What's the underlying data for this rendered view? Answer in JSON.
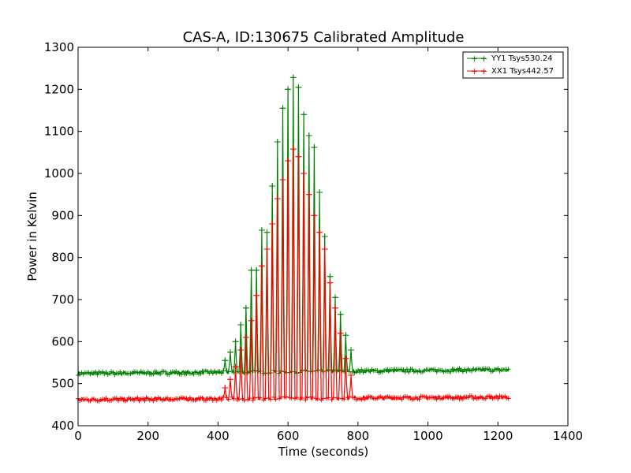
{
  "chart_data": {
    "type": "line",
    "title": "CAS-A, ID:130675 Calibrated Amplitude",
    "xlabel": "Time (seconds)",
    "ylabel": "Power in Kelvin",
    "xlim": [
      0,
      1400
    ],
    "ylim": [
      400,
      1300
    ],
    "xticks": [
      0,
      200,
      400,
      600,
      800,
      1000,
      1200,
      1400
    ],
    "yticks": [
      400,
      500,
      600,
      700,
      800,
      900,
      1000,
      1100,
      1200,
      1300
    ],
    "grid": false,
    "legend_position": "top-right",
    "marker": "+",
    "x_range": [
      0,
      1230
    ],
    "source_center_seconds": 615,
    "source_scan_period_seconds": 15,
    "series": [
      {
        "name": "YY1 Tsys530.24",
        "color": "#008000",
        "baseline_start": 524,
        "baseline_end": 533,
        "peak_x": [
          420,
          435,
          450,
          465,
          480,
          495,
          510,
          525,
          540,
          555,
          570,
          585,
          600,
          615,
          630,
          645,
          660,
          675,
          690,
          705,
          720,
          735,
          750,
          765,
          780
        ],
        "peak_y": [
          555,
          575,
          600,
          640,
          680,
          770,
          770,
          865,
          860,
          970,
          1075,
          1155,
          1200,
          1228,
          1205,
          1140,
          1090,
          1062,
          955,
          850,
          755,
          705,
          665,
          615,
          580
        ]
      },
      {
        "name": "XX1 Tsys442.57",
        "color": "#ff0000",
        "baseline_start": 462,
        "baseline_end": 468,
        "peak_x": [
          420,
          435,
          450,
          465,
          480,
          495,
          510,
          525,
          540,
          555,
          570,
          585,
          600,
          615,
          630,
          645,
          660,
          675,
          690,
          705,
          720,
          735,
          750,
          765,
          780
        ],
        "peak_y": [
          490,
          510,
          540,
          580,
          610,
          650,
          710,
          780,
          820,
          880,
          940,
          985,
          1030,
          1058,
          1040,
          1000,
          950,
          900,
          860,
          820,
          740,
          680,
          620,
          560,
          520
        ]
      }
    ]
  }
}
